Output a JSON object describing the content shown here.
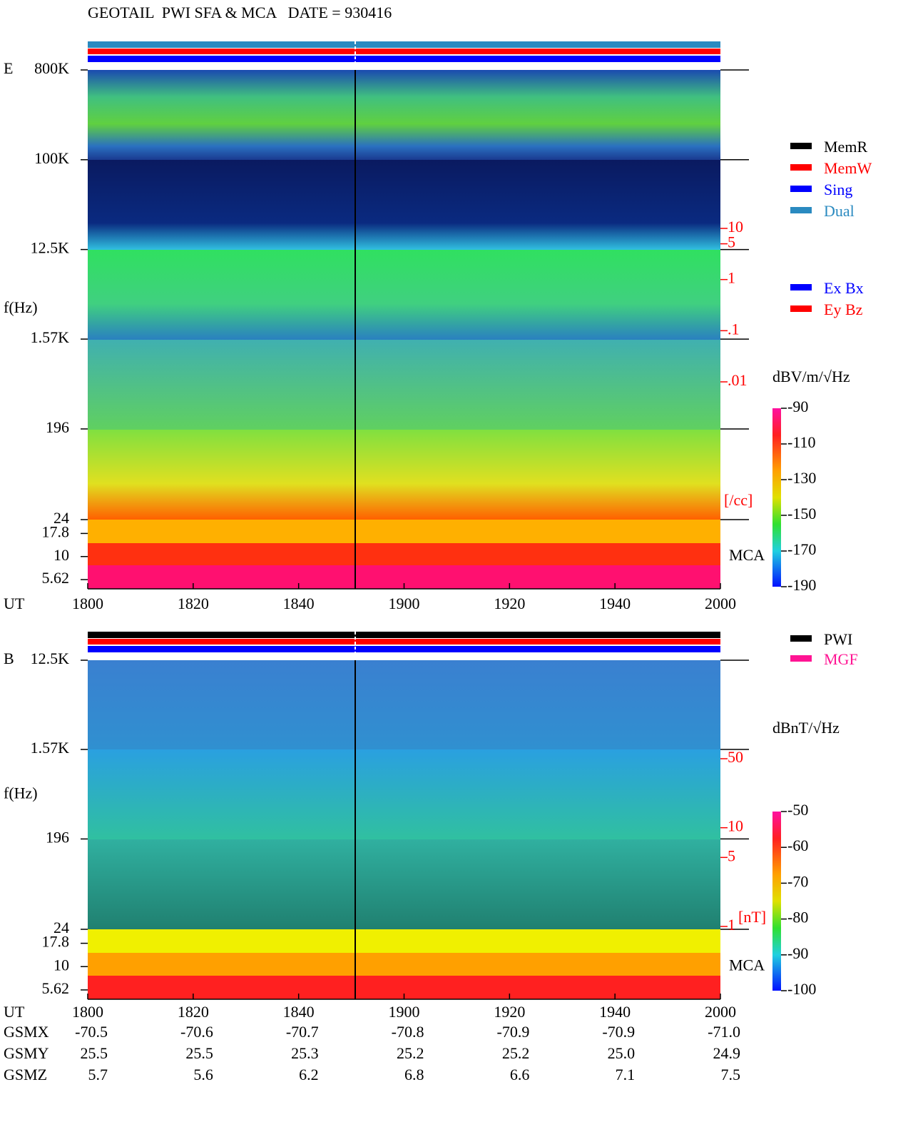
{
  "title": "GEOTAIL  PWI SFA & MCA   DATE = 930416",
  "chart_data": [
    {
      "type": "spectrogram",
      "panel_label": "E",
      "ylabel": "f(Hz)",
      "xlabel": "UT",
      "categories": [
        "1800",
        "1820",
        "1840",
        "1900",
        "1920",
        "1940",
        "2000"
      ],
      "log": true,
      "ylim": [
        24,
        800000
      ],
      "yticks": [
        {
          "value": 800000,
          "label": "800K"
        },
        {
          "value": 100000,
          "label": "100K"
        },
        {
          "value": 12500,
          "label": "12.5K"
        },
        {
          "value": 1570,
          "label": "1.57K"
        },
        196,
        24
      ],
      "mca_label": "MCA",
      "mca_ticks": [
        17.8,
        10,
        5.62
      ],
      "y2lim": [
        0.01,
        10
      ],
      "y2ticks": [
        10,
        5,
        1,
        {
          "value": 0.1,
          "label": ".1"
        },
        {
          "value": 0.01,
          "label": ".01"
        }
      ],
      "y2label": "[/cc]",
      "colorbar_label": "dBV/m/√Hz",
      "colorbar_lim": [
        -190,
        -90
      ],
      "colorbar_ticks": [
        -90,
        -110,
        -130,
        -150,
        -170,
        -190
      ],
      "status_legend": [
        {
          "name": "MemR",
          "color": "#000000"
        },
        {
          "name": "MemW",
          "color": "#ff0000"
        },
        {
          "name": "Sing",
          "color": "#0000ff"
        },
        {
          "name": "Dual",
          "color": "#2a8ac0"
        }
      ],
      "component_legend": [
        {
          "name": "Ex Bx",
          "color": "#0000ff"
        },
        {
          "name": "Ey Bz",
          "color": "#ff0000"
        }
      ]
    },
    {
      "type": "spectrogram",
      "panel_label": "B",
      "ylabel": "f(Hz)",
      "xlabel": "UT",
      "categories": [
        "1800",
        "1820",
        "1840",
        "1900",
        "1920",
        "1940",
        "2000"
      ],
      "log": true,
      "ylim": [
        24,
        12500
      ],
      "yticks": [
        {
          "value": 12500,
          "label": "12.5K"
        },
        {
          "value": 1570,
          "label": "1.57K"
        },
        196,
        24
      ],
      "mca_label": "MCA",
      "mca_ticks": [
        17.8,
        10,
        5.62
      ],
      "y2lim": [
        1,
        50
      ],
      "y2ticks": [
        50,
        10,
        5,
        1
      ],
      "y2label": "[nT]",
      "colorbar_label": "dBnT/√Hz",
      "colorbar_lim": [
        -100,
        -50
      ],
      "colorbar_ticks": [
        -50,
        -60,
        -70,
        -80,
        -90,
        -100
      ],
      "status_legend": [
        {
          "name": "PWI",
          "color": "#000000"
        },
        {
          "name": "MGF",
          "color": "#ff1493"
        }
      ]
    }
  ],
  "orbit": {
    "rows": [
      {
        "label": "GSMX",
        "cells": [
          "-70.5",
          "-70.6",
          "-70.7",
          "-70.8",
          "-70.9",
          "-70.9",
          "-71.0"
        ]
      },
      {
        "label": "GSMY",
        "cells": [
          "25.5",
          "25.5",
          "25.3",
          "25.2",
          "25.2",
          "25.0",
          "24.9"
        ]
      },
      {
        "label": "GSMZ",
        "cells": [
          "5.7",
          "5.6",
          "6.2",
          "6.8",
          "6.6",
          "7.1",
          "7.5"
        ]
      }
    ]
  }
}
